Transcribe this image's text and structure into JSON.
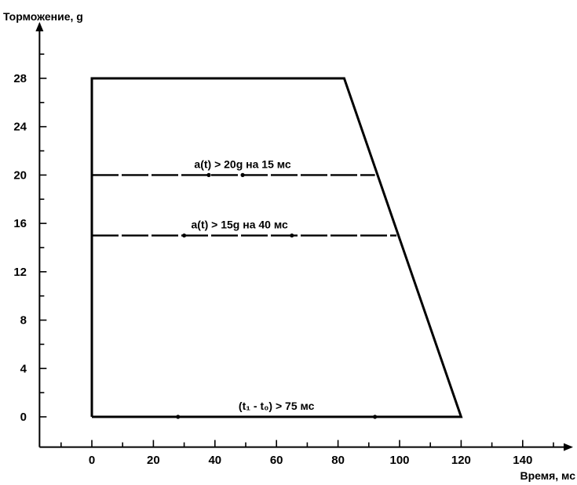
{
  "chart_data": {
    "type": "line",
    "xlabel": "Время, мс",
    "ylabel": "Торможение, g",
    "xlim": [
      -17,
      155
    ],
    "ylim": [
      -2.5,
      32
    ],
    "x_ticks": [
      0,
      20,
      40,
      60,
      80,
      100,
      120,
      140
    ],
    "y_ticks": [
      0,
      4,
      8,
      12,
      16,
      20,
      24,
      28
    ],
    "x_tick_labels": [
      "0",
      "20",
      "40",
      "60",
      "80",
      "100",
      "120",
      "140"
    ],
    "y_tick_labels": [
      "0",
      "4",
      "8",
      "12",
      "16",
      "20",
      "24",
      "28"
    ],
    "series": [
      {
        "x": [
          0,
          0,
          82,
          120,
          0
        ],
        "y": [
          0,
          28,
          28,
          0,
          0
        ]
      }
    ],
    "annotations": [
      {
        "text": "a(t) > 20g на 15 мс",
        "y": 20,
        "x_start": 0,
        "x_end": 92,
        "markers": [
          38,
          49
        ],
        "label_x": 49
      },
      {
        "text": "a(t) > 15g на 40 мс",
        "y": 15,
        "x_start": 0,
        "x_end": 99,
        "markers": [
          30,
          65
        ],
        "label_x": 48
      },
      {
        "text": "(t₁ - t₀) > 75 мс",
        "y": 0,
        "x_start": 0,
        "x_end": 120,
        "markers": [
          28,
          92
        ],
        "label_x": 60
      }
    ],
    "grid": false,
    "legend": "none"
  }
}
